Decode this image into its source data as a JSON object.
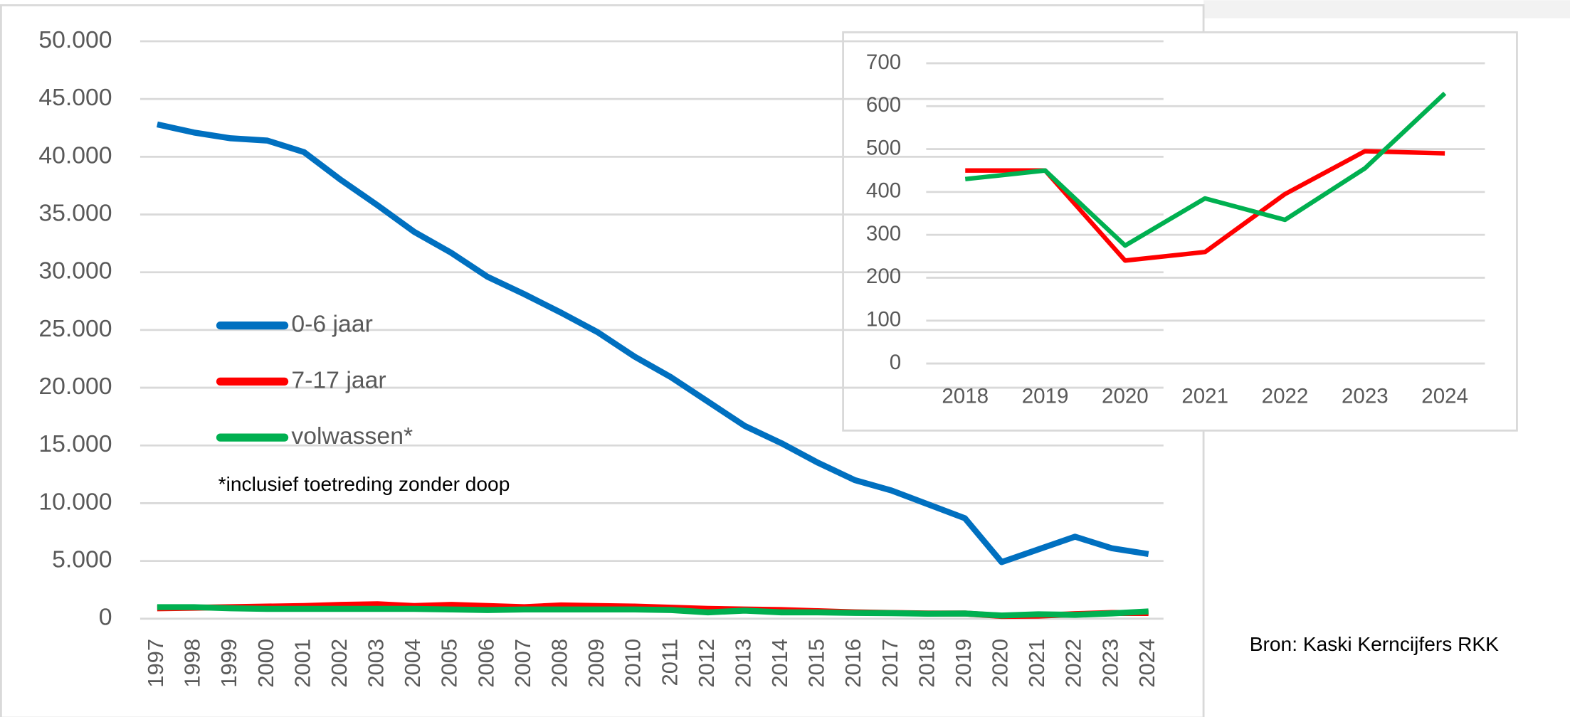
{
  "chart_data": [
    {
      "type": "line",
      "categories": [
        "1997",
        "1998",
        "1999",
        "2000",
        "2001",
        "2002",
        "2003",
        "2004",
        "2005",
        "2006",
        "2007",
        "2008",
        "2009",
        "2010",
        "2011",
        "2012",
        "2013",
        "2014",
        "2015",
        "2016",
        "2017",
        "2018",
        "2019",
        "2020",
        "2021",
        "2022",
        "2023",
        "2024"
      ],
      "series": [
        {
          "name": "0-6 jaar",
          "color": "#0070c0",
          "values": [
            42800,
            42100,
            41600,
            41400,
            40400,
            38000,
            35800,
            33500,
            31700,
            29600,
            28100,
            26500,
            24800,
            22700,
            20900,
            18800,
            16700,
            15200,
            13500,
            12000,
            11100,
            9900,
            8700,
            4900,
            6000,
            7100,
            6100,
            5600
          ]
        },
        {
          "name": "7-17 jaar",
          "color": "#ff0000",
          "values": [
            900,
            950,
            1000,
            1050,
            1100,
            1200,
            1250,
            1100,
            1200,
            1100,
            1000,
            1150,
            1100,
            1050,
            950,
            850,
            800,
            750,
            650,
            550,
            500,
            450,
            450,
            240,
            260,
            395,
            495,
            490
          ]
        },
        {
          "name": "volwassen*",
          "color": "#00b050",
          "values": [
            1000,
            1000,
            900,
            850,
            850,
            850,
            850,
            850,
            800,
            750,
            800,
            800,
            800,
            800,
            750,
            550,
            700,
            550,
            550,
            500,
            480,
            430,
            450,
            275,
            385,
            335,
            455,
            630
          ]
        }
      ],
      "ylim": [
        0,
        50000
      ],
      "yticks": [
        0,
        {
          "value": 5000,
          "label": "5.000"
        },
        {
          "value": 10000,
          "label": "10.000"
        },
        {
          "value": 15000,
          "label": "15.000"
        },
        {
          "value": 20000,
          "label": "20.000"
        },
        {
          "value": 25000,
          "label": "25.000"
        },
        {
          "value": 30000,
          "label": "30.000"
        },
        {
          "value": 35000,
          "label": "35.000"
        },
        {
          "value": 40000,
          "label": "40.000"
        },
        {
          "value": 45000,
          "label": "45.000"
        },
        {
          "value": 50000,
          "label": "50.000"
        }
      ],
      "grid": true,
      "annotation": "*inclusief toetreding zonder doop",
      "source": "Bron: Kaski Kerncijfers RKK"
    },
    {
      "type": "line",
      "categories": [
        "2018",
        "2019",
        "2020",
        "2021",
        "2022",
        "2023",
        "2024"
      ],
      "series": [
        {
          "color": "#ff0000",
          "values": [
            450,
            450,
            240,
            260,
            395,
            495,
            490
          ]
        },
        {
          "color": "#00b050",
          "values": [
            430,
            450,
            275,
            385,
            335,
            455,
            630
          ]
        }
      ],
      "ylim": [
        0,
        700
      ],
      "yticks": [
        0,
        100,
        200,
        300,
        400,
        500,
        600,
        700
      ],
      "grid": true
    }
  ]
}
